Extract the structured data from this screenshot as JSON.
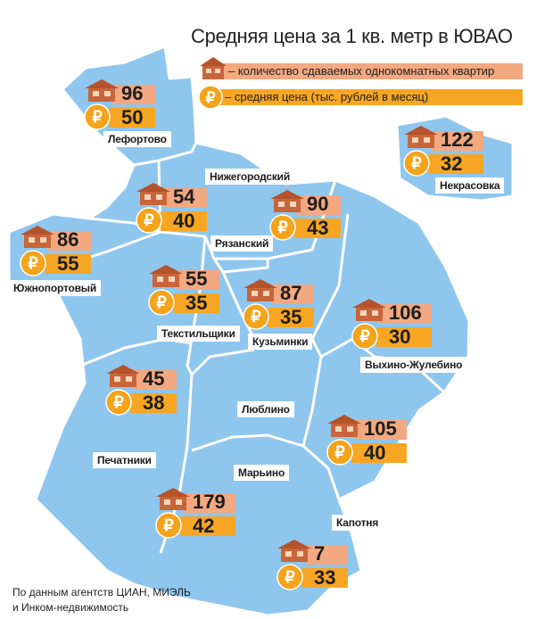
{
  "title": "Средняя цена за 1 кв. метр в ЮВАО",
  "legend": {
    "count_label": "– количество сдаваемых однокомнатных квартир",
    "price_label": "– средняя цена (тыс. рублей в месяц)"
  },
  "icons": {
    "count": "house-icon",
    "price": "ruble-coin-icon"
  },
  "colors": {
    "map_fill": "#8ec6ee",
    "border": "#ffffff",
    "count_bar": "#f2a880",
    "price_bar": "#f6a623",
    "coin": "#f5a31a",
    "house": "#b5532a"
  },
  "districts": [
    {
      "name": "Лефортово",
      "count": "96",
      "price": "50"
    },
    {
      "name": "Нижегородский",
      "count": "54",
      "price": "40"
    },
    {
      "name": "Рязанский",
      "count": "90",
      "price": "43"
    },
    {
      "name": "Некрасовка",
      "count": "122",
      "price": "32"
    },
    {
      "name": "Южнопортовый",
      "count": "86",
      "price": "55"
    },
    {
      "name": "Текстильщики",
      "count": "55",
      "price": "35"
    },
    {
      "name": "Кузьминки",
      "count": "87",
      "price": "35"
    },
    {
      "name": "Выхино-Жулебино",
      "count": "106",
      "price": "30"
    },
    {
      "name": "Печатники",
      "count": "45",
      "price": "38"
    },
    {
      "name": "Люблино",
      "count": "105",
      "price": "40"
    },
    {
      "name": "Марьино",
      "count": "179",
      "price": "42"
    },
    {
      "name": "Капотня",
      "count": "7",
      "price": "33"
    }
  ],
  "source": {
    "line1": "По данным агентств ЦИАН, МИЭЛЬ",
    "line2": "и Инком-недвижимость"
  }
}
